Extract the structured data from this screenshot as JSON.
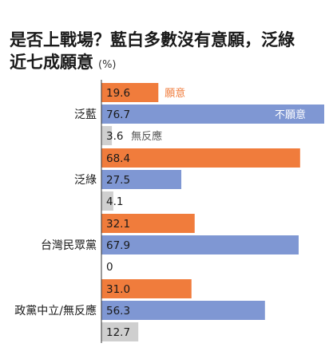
{
  "title": {
    "line1": "是否上戰場？藍白多數沒有意願，泛綠",
    "line2": "近七成願意",
    "unit": "(%)"
  },
  "colors": {
    "willing": "#F07C3C",
    "unwilling": "#7F97D3",
    "no_response": "#CFCFCF"
  },
  "chart_data": {
    "type": "bar",
    "orientation": "horizontal",
    "title": "是否上戰場？藍白多數沒有意願，泛綠近七成願意",
    "unit": "(%)",
    "xlim": [
      0,
      100
    ],
    "categories": [
      "泛藍",
      "泛綠",
      "台灣民眾黨",
      "政黨中立/無反應"
    ],
    "series": [
      {
        "name": "願意",
        "values": [
          19.6,
          68.4,
          32.1,
          31.0
        ],
        "labels": [
          "19.6",
          "68.4",
          "32.1",
          "31.0"
        ]
      },
      {
        "name": "不願意",
        "values": [
          76.7,
          27.5,
          67.9,
          56.3
        ],
        "labels": [
          "76.7",
          "27.5",
          "67.9",
          "56.3"
        ]
      },
      {
        "name": "無反應",
        "values": [
          3.6,
          4.1,
          0,
          12.7
        ],
        "labels": [
          "3.6",
          "4.1",
          "0",
          "12.7"
        ]
      }
    ]
  }
}
